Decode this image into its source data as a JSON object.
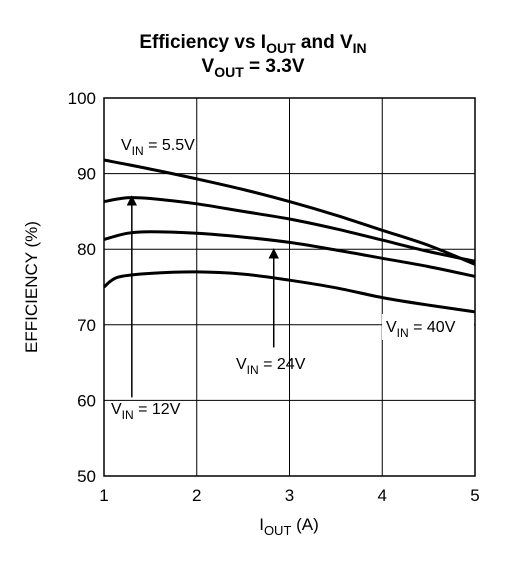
{
  "chart_data": {
    "type": "line",
    "title": {
      "line1": {
        "prefix": "Efficiency vs I",
        "sub1": "OUT",
        "mid": " and V",
        "sub2": "IN"
      },
      "line2": {
        "prefix": "V",
        "sub": "OUT",
        "suffix": " = 3.3V"
      }
    },
    "xlabel": {
      "main": "I",
      "sub": "OUT",
      "suffix": " (A)"
    },
    "ylabel": "EFFICIENCY (%)",
    "xlim": [
      1,
      5
    ],
    "ylim": [
      50,
      100
    ],
    "x_ticks": [
      "1",
      "2",
      "3",
      "4",
      "5"
    ],
    "y_ticks": [
      "50",
      "60",
      "70",
      "80",
      "90",
      "100"
    ],
    "grid": true,
    "series": [
      {
        "name": "V_IN = 5.5V",
        "color": "#000000",
        "x": [
          1.0,
          1.5,
          2.0,
          2.5,
          3.0,
          3.5,
          4.0,
          4.5,
          5.0
        ],
        "y": [
          91.8,
          90.6,
          89.3,
          87.9,
          86.3,
          84.5,
          82.5,
          80.5,
          78.0
        ]
      },
      {
        "name": "V_IN = 12V",
        "color": "#000000",
        "x": [
          1.0,
          1.25,
          1.5,
          2.0,
          2.5,
          3.0,
          3.5,
          4.0,
          4.5,
          5.0
        ],
        "y": [
          86.3,
          86.8,
          86.7,
          86.0,
          85.0,
          84.0,
          82.7,
          81.2,
          79.7,
          78.4
        ]
      },
      {
        "name": "V_IN = 24V",
        "color": "#000000",
        "x": [
          1.0,
          1.25,
          1.5,
          2.0,
          2.5,
          3.0,
          3.5,
          4.0,
          4.5,
          5.0
        ],
        "y": [
          81.3,
          82.1,
          82.3,
          82.1,
          81.6,
          80.9,
          79.9,
          78.8,
          77.7,
          76.4
        ]
      },
      {
        "name": "V_IN = 40V",
        "color": "#000000",
        "x": [
          1.0,
          1.15,
          1.5,
          2.0,
          2.5,
          3.0,
          3.5,
          4.0,
          4.5,
          5.0
        ],
        "y": [
          75.0,
          76.3,
          76.8,
          77.0,
          76.7,
          75.9,
          74.9,
          73.6,
          72.6,
          71.7
        ]
      }
    ],
    "annotations": [
      {
        "main": "V",
        "sub": "IN",
        "suffix": " = 5.5V"
      },
      {
        "main": "V",
        "sub": "IN",
        "suffix": " = 12V"
      },
      {
        "main": "V",
        "sub": "IN",
        "suffix": " = 24V"
      },
      {
        "main": "V",
        "sub": "IN",
        "suffix": " = 40V"
      }
    ],
    "arrows": [
      {
        "x": 1.3,
        "y_from": 60.4,
        "y_to": 87.0
      },
      {
        "x": 2.83,
        "y_from": 67.0,
        "y_to": 80.0
      }
    ]
  }
}
